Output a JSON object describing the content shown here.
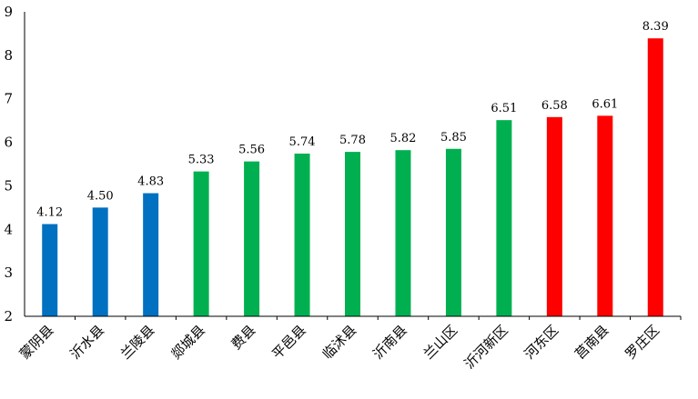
{
  "chart_data": {
    "type": "bar",
    "categories": [
      "蒙阴县",
      "沂水县",
      "兰陵县",
      "郯城县",
      "费县",
      "平邑县",
      "临沭县",
      "沂南县",
      "兰山区",
      "沂河新区",
      "河东区",
      "莒南县",
      "罗庄区"
    ],
    "values": [
      4.12,
      4.5,
      4.83,
      5.33,
      5.56,
      5.74,
      5.78,
      5.82,
      5.85,
      6.51,
      6.58,
      6.61,
      8.39
    ],
    "value_labels": [
      "4.12",
      "4.50",
      "4.83",
      "5.33",
      "5.56",
      "5.74",
      "5.78",
      "5.82",
      "5.85",
      "6.51",
      "6.58",
      "6.61",
      "8.39"
    ],
    "bar_colors": [
      "#0070C0",
      "#0070C0",
      "#0070C0",
      "#00B050",
      "#00B050",
      "#00B050",
      "#00B050",
      "#00B050",
      "#00B050",
      "#00B050",
      "#FF0000",
      "#FF0000",
      "#FF0000"
    ],
    "ylim": [
      2,
      9
    ],
    "yticks": [
      "2",
      "3",
      "4",
      "5",
      "6",
      "7",
      "8",
      "9"
    ],
    "title": "",
    "xlabel": "",
    "ylabel": "",
    "grid": false,
    "legend": "none"
  }
}
